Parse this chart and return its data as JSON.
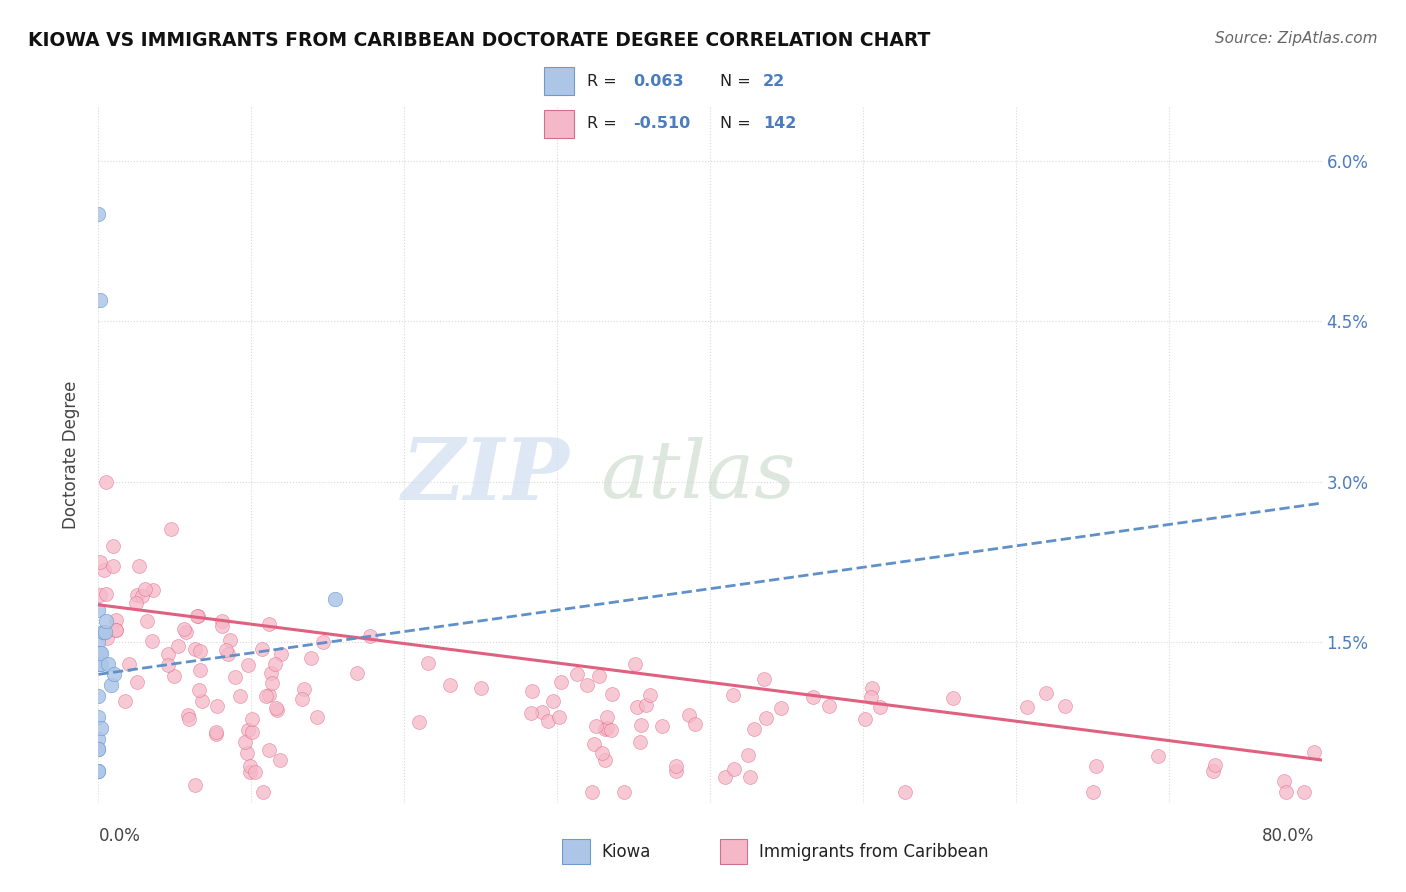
{
  "title": "KIOWA VS IMMIGRANTS FROM CARIBBEAN DOCTORATE DEGREE CORRELATION CHART",
  "source": "Source: ZipAtlas.com",
  "ylabel": "Doctorate Degree",
  "right_yticks": [
    "6.0%",
    "4.5%",
    "3.0%",
    "1.5%"
  ],
  "right_ytick_vals": [
    0.06,
    0.045,
    0.03,
    0.015
  ],
  "kiowa_color": "#adc6e8",
  "caribbean_color": "#f5b8c8",
  "trendline_kiowa_color": "#6090c8",
  "trendline_caribbean_color": "#e06080",
  "watermark_zip": "ZIP",
  "watermark_atlas": "atlas",
  "background_color": "#ffffff",
  "grid_color": "#d8d8d8",
  "xlim": [
    0.0,
    0.8
  ],
  "ylim": [
    0.0,
    0.065
  ],
  "kiowa_x": [
    0.001,
    0.0,
    0.0,
    0.0,
    0.0,
    0.0,
    0.0,
    0.001,
    0.001,
    0.002,
    0.002,
    0.002,
    0.003,
    0.004,
    0.005,
    0.006,
    0.008,
    0.01,
    0.0,
    0.0,
    0.0,
    0.0
  ],
  "kiowa_y": [
    0.047,
    0.055,
    0.015,
    0.018,
    0.01,
    0.008,
    0.006,
    0.013,
    0.014,
    0.013,
    0.014,
    0.007,
    0.016,
    0.016,
    0.017,
    0.013,
    0.011,
    0.012,
    0.005,
    0.005,
    0.003,
    0.003
  ],
  "kiowa_outlier_x": [
    0.155
  ],
  "kiowa_outlier_y": [
    0.019
  ],
  "trendline_carib_x0": 0.0,
  "trendline_carib_y0": 0.0185,
  "trendline_carib_x1": 0.8,
  "trendline_carib_y1": 0.004,
  "trendline_kiowa_x0": 0.0,
  "trendline_kiowa_y0": 0.012,
  "trendline_kiowa_x1": 0.8,
  "trendline_kiowa_y1": 0.028
}
